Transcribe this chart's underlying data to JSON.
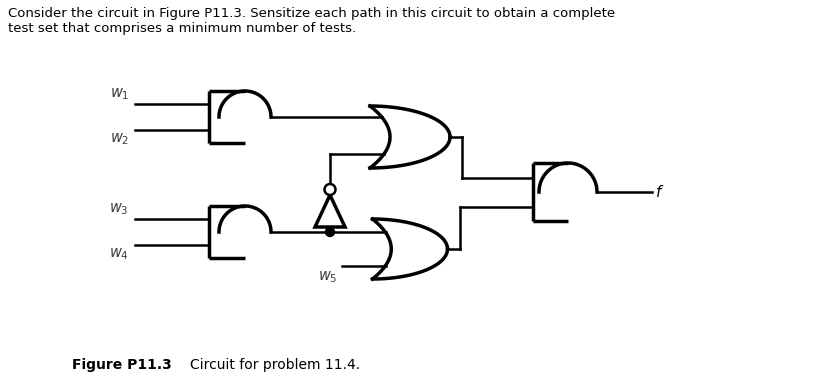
{
  "title_text": "Consider the circuit in Figure P11.3. Sensitize each path in this circuit to obtain a complete\ntest set that comprises a minimum number of tests.",
  "figure_label": "Figure P11.3",
  "figure_caption": "Circuit for problem 11.4.",
  "background_color": "#ffffff",
  "text_color": "#000000",
  "line_color": "#000000",
  "label_color": "#3a3a3a",
  "lw_gate": 2.5,
  "lw_wire": 1.8
}
